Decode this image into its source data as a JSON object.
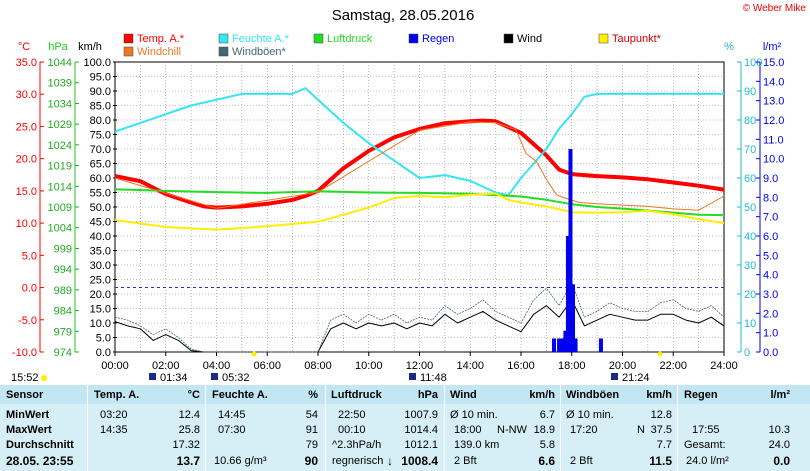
{
  "header": {
    "title": "Samstag, 28.05.2016",
    "copyright": "© Weber Mike"
  },
  "legend": [
    {
      "label": "Temp. A.*",
      "color": "#ff0000"
    },
    {
      "label": "Feuchte A.*",
      "color": "#33e6f2"
    },
    {
      "label": "Luftdruck",
      "color": "#22dd22"
    },
    {
      "label": "Regen",
      "color": "#0000ee"
    },
    {
      "label": "Wind",
      "color": "#000000"
    },
    {
      "label": "Taupunkt*",
      "color": "#ffee00"
    },
    {
      "label": "Windchill",
      "color": "#ee7722"
    },
    {
      "label": "Windböen*",
      "color": "#446677"
    }
  ],
  "axis_units": {
    "temp": "°C",
    "pressure": "hPa",
    "wind": "km/h",
    "humidity": "%",
    "rain": "l/m²"
  },
  "chart_data": {
    "type": "line",
    "title": "Samstag, 28.05.2016",
    "x_ticks": [
      "00:00",
      "02:00",
      "04:00",
      "06:00",
      "08:00",
      "10:00",
      "12:00",
      "14:00",
      "16:00",
      "18:00",
      "20:00",
      "22:00",
      "24:00"
    ],
    "axes": {
      "temp": {
        "unit": "°C",
        "range": [
          -10,
          35
        ],
        "ticks": [
          "35.0",
          "30.0",
          "25.0",
          "20.0",
          "15.0",
          "10.0",
          "5.0",
          "0.0",
          "-5.0",
          "-10.0"
        ]
      },
      "pressure": {
        "unit": "hPa",
        "range": [
          974,
          1046
        ],
        "ticks": [
          "1044",
          "1039",
          "1034",
          "1029",
          "1024",
          "1019",
          "1014",
          "1009",
          "1004",
          "999",
          "994",
          "989",
          "984",
          "979",
          "974"
        ]
      },
      "wind": {
        "unit": "km/h",
        "range": [
          0,
          100
        ],
        "ticks": [
          "100.0",
          "95.0",
          "90.0",
          "85.0",
          "80.0",
          "75.0",
          "70.0",
          "65.0",
          "60.0",
          "55.0",
          "50.0",
          "45.0",
          "40.0",
          "35.0",
          "30.0",
          "25.0",
          "20.0",
          "15.0",
          "10.0",
          "5.0",
          "0.0"
        ]
      },
      "humidity": {
        "unit": "%",
        "range": [
          0,
          100
        ],
        "ticks": [
          "100",
          "90",
          "80",
          "70",
          "60",
          "50",
          "40",
          "30",
          "20",
          "10",
          "0"
        ]
      },
      "rain": {
        "unit": "l/m²",
        "range": [
          0,
          15
        ],
        "ticks": [
          "15.0",
          "14.0",
          "13.0",
          "12.0",
          "11.0",
          "10.0",
          "9.0",
          "8.0",
          "7.0",
          "6.0",
          "5.0",
          "4.0",
          "3.0",
          "2.0",
          "1.0",
          "0.0"
        ]
      }
    },
    "series": [
      {
        "name": "Temp. A.*",
        "axis": "temp",
        "color": "#ff0000",
        "x": [
          0,
          1,
          2,
          3,
          3.5,
          4,
          5,
          6,
          7,
          7.5,
          8,
          9,
          10,
          11,
          12,
          13,
          14,
          14.5,
          15,
          16,
          17,
          17.5,
          18,
          19,
          20,
          21,
          22,
          23,
          24
        ],
        "y": [
          17.3,
          16.5,
          14.5,
          13.2,
          12.6,
          12.4,
          12.6,
          13.0,
          13.6,
          14.2,
          15.0,
          18.5,
          21.2,
          23.3,
          24.6,
          25.5,
          25.8,
          25.9,
          25.8,
          24.0,
          20.5,
          18.3,
          17.6,
          17.3,
          17.1,
          16.8,
          16.3,
          15.8,
          15.2
        ]
      },
      {
        "name": "Feuchte A.*",
        "axis": "humidity",
        "color": "#33e6f2",
        "x": [
          0,
          1,
          2,
          3,
          4,
          5,
          6,
          7,
          7.5,
          8,
          9,
          10,
          11,
          12,
          13,
          14,
          15,
          15.5,
          16,
          17,
          17.5,
          18,
          18.5,
          19,
          20,
          21,
          22,
          23,
          24
        ],
        "y": [
          76,
          79,
          82,
          85,
          87,
          89,
          89,
          89,
          91,
          87,
          79,
          72,
          66,
          60,
          61,
          59,
          55,
          54,
          60,
          70,
          77,
          82,
          88,
          89,
          89,
          89,
          89,
          89,
          89
        ]
      },
      {
        "name": "Luftdruck",
        "axis": "pressure",
        "color": "#22dd22",
        "x": [
          0,
          2,
          4,
          6,
          8,
          10,
          12,
          14,
          16,
          17,
          18,
          19,
          20,
          21,
          22,
          23,
          24
        ],
        "y": [
          1014.4,
          1014.0,
          1013.7,
          1013.5,
          1013.9,
          1013.6,
          1013.5,
          1013.3,
          1012.6,
          1011.8,
          1010.7,
          1010.0,
          1009.6,
          1009.1,
          1008.6,
          1008.1,
          1008.0
        ]
      },
      {
        "name": "Taupunkt*",
        "axis": "temp",
        "color": "#ffee00",
        "x": [
          0,
          2,
          4,
          6,
          8,
          10,
          11,
          12,
          13,
          14,
          15,
          15.5,
          16,
          17,
          18,
          19,
          20,
          21,
          22,
          23,
          24
        ],
        "y": [
          10.5,
          9.4,
          9.0,
          9.5,
          10.2,
          12.4,
          13.9,
          14.2,
          14.0,
          14.4,
          14.6,
          13.6,
          13.2,
          12.6,
          11.7,
          11.6,
          11.7,
          11.9,
          11.4,
          10.6,
          10.0
        ]
      },
      {
        "name": "Windchill",
        "axis": "temp",
        "color": "#ee7722",
        "x": [
          0,
          4,
          8,
          12,
          14,
          15,
          15.8,
          16.2,
          16.6,
          17,
          17.4,
          17.8,
          18.3,
          19,
          20,
          21,
          22,
          23,
          24
        ],
        "y": [
          17.0,
          12.3,
          14.8,
          24.4,
          25.7,
          25.6,
          24.5,
          20.8,
          19.6,
          16.8,
          14.4,
          13.8,
          13.2,
          13.0,
          12.8,
          12.6,
          12.2,
          12.0,
          14.2
        ]
      },
      {
        "name": "Wind",
        "axis": "wind",
        "color": "#000000",
        "x": [
          0,
          0.5,
          1,
          1.5,
          2,
          2.5,
          3,
          3.5,
          4,
          4.5,
          5,
          5.5,
          6,
          6.5,
          7,
          7.5,
          8,
          8.5,
          9,
          9.5,
          10,
          10.5,
          11,
          11.5,
          12,
          12.5,
          13,
          13.5,
          14,
          14.5,
          15,
          15.5,
          16,
          16.5,
          17,
          17.5,
          18,
          18.5,
          19,
          19.5,
          20,
          20.5,
          21,
          21.5,
          22,
          22.5,
          23,
          23.5,
          24
        ],
        "y": [
          10.5,
          9,
          8,
          4,
          6,
          4,
          0.5,
          0,
          0,
          0,
          0,
          0,
          0,
          0,
          0,
          0,
          0,
          8,
          10,
          8,
          10,
          9,
          10,
          8,
          10,
          9,
          13,
          10,
          12,
          14,
          11,
          9,
          7,
          13,
          16,
          12,
          18,
          9,
          11,
          13,
          12,
          11,
          11,
          13,
          13,
          11,
          10,
          12,
          9
        ]
      },
      {
        "name": "Windböen*",
        "axis": "wind",
        "color": "#446677",
        "x": [
          0,
          0.5,
          1,
          1.5,
          2,
          2.5,
          3,
          3.5,
          4,
          8,
          8.5,
          9,
          9.5,
          10,
          10.5,
          11,
          11.5,
          12,
          12.5,
          13,
          13.5,
          14,
          14.5,
          15,
          15.5,
          16,
          16.5,
          17,
          17.5,
          18,
          18.5,
          19,
          19.5,
          20,
          20.5,
          21,
          21.5,
          22,
          22.5,
          23,
          23.5,
          24
        ],
        "y": [
          12,
          11,
          9,
          6,
          8,
          5,
          1,
          0,
          0,
          0,
          11,
          13,
          10,
          13,
          11,
          13,
          10,
          12,
          11,
          16,
          13,
          15,
          18,
          14,
          12,
          10,
          18,
          22,
          16,
          24,
          12,
          14,
          17,
          15,
          14,
          14,
          17,
          18,
          15,
          14,
          16,
          12
        ]
      },
      {
        "name": "Regen",
        "axis": "rain",
        "color": "#0000ee",
        "type": "bar",
        "x": [
          17.3,
          17.5,
          17.65,
          17.75,
          17.85,
          17.95,
          18.05,
          18.15,
          19.15
        ],
        "y": [
          0.7,
          0.7,
          0.7,
          1.1,
          6.0,
          10.5,
          3.5,
          0.7,
          0.7
        ]
      }
    ],
    "reference_line": {
      "axis": "temp",
      "value": 0.0,
      "style": "dashed"
    }
  },
  "time_labels": {
    "left": "15:52",
    "low": [
      "01:34",
      "05:32",
      "11:48",
      "21:24"
    ]
  },
  "table": {
    "headers": {
      "sensor": "Sensor",
      "temp": "Temp. A.",
      "temp_unit": "°C",
      "hum": "Feuchte A.",
      "hum_unit": "%",
      "press": "Luftdruck",
      "press_unit": "hPa",
      "wind": "Wind",
      "wind_unit": "km/h",
      "gust": "Windböen",
      "gust_unit": "km/h",
      "rain": "Regen",
      "rain_unit": "l/m²"
    },
    "rows": {
      "min": {
        "label": "MinWert",
        "temp_time": "03:20",
        "temp_val": "12.4",
        "hum_time": "14:45",
        "hum_val": "54",
        "press_time": "22:50",
        "press_val": "1007.9",
        "wind_text": "Ø 10 min.",
        "wind_val": "6.7",
        "gust_text": "Ø 10 min.",
        "gust_val": "12.8"
      },
      "max": {
        "label": "MaxWert",
        "temp_time": "14:35",
        "temp_val": "25.8",
        "hum_time": "07:30",
        "hum_val": "91",
        "press_time": "00:10",
        "press_val": "1014.4",
        "wind_time": "18:00",
        "wind_dir": "N-NW",
        "wind_val": "18.9",
        "gust_time": "17:20",
        "gust_dir": "N",
        "gust_val": "37.5",
        "rain_time": "17:55",
        "rain_val": "10.3"
      },
      "avg": {
        "label": "Durchschnitt",
        "temp_val": "17.32",
        "hum_val": "79",
        "press_text": "^2.3hPa/h",
        "press_val": "1012.1",
        "wind_text": "139.0 km",
        "wind_val": "5.8",
        "gust_val": "7.7",
        "rain_text": "Gesamt:",
        "rain_val": "24.0"
      },
      "cur": {
        "label": "28.05. 23:55",
        "temp_val": "13.7",
        "hum_text": "10.66 g/m³",
        "hum_val": "90",
        "press_text": "regnerisch",
        "press_arrow": "↓",
        "press_val": "1008.4",
        "wind_text": "2 Bft",
        "wind_val": "6.6",
        "gust_text": "2 Bft",
        "gust_val": "11.5",
        "rain_text": "24.0 l/m²",
        "rain_val": "0.0"
      }
    }
  }
}
